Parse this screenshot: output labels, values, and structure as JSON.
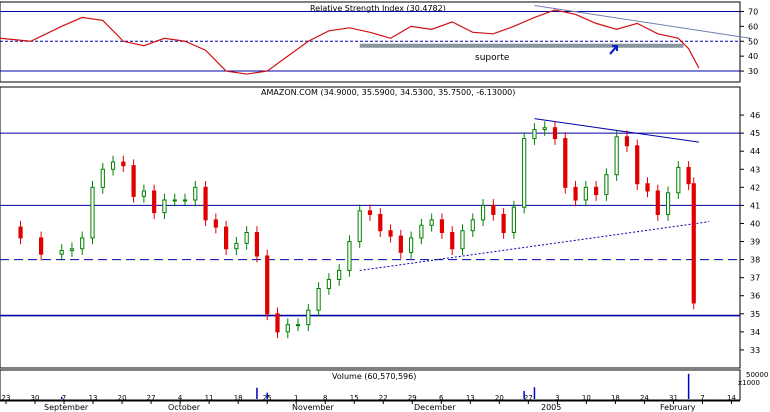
{
  "chart_data": {
    "type": "candlestick",
    "panels": {
      "rsi": {
        "title": "Relative Strength Index (30.4782)",
        "ylim": [
          24,
          75
        ],
        "ticks": [
          30,
          40,
          50,
          60,
          70
        ],
        "reference_lines": [
          70,
          50,
          30
        ],
        "annotation": "suporte",
        "support_level": 47,
        "trend_points": [
          [
            0,
            52
          ],
          [
            6,
            50
          ],
          [
            12,
            60
          ],
          [
            16,
            66
          ],
          [
            20,
            64
          ],
          [
            24,
            50
          ],
          [
            28,
            47
          ],
          [
            32,
            52
          ],
          [
            36,
            50
          ],
          [
            40,
            44
          ],
          [
            44,
            30
          ],
          [
            48,
            28
          ],
          [
            52,
            30
          ],
          [
            56,
            40
          ],
          [
            60,
            50
          ],
          [
            64,
            57
          ],
          [
            68,
            59
          ],
          [
            72,
            56
          ],
          [
            76,
            52
          ],
          [
            80,
            60
          ],
          [
            84,
            58
          ],
          [
            88,
            63
          ],
          [
            92,
            56
          ],
          [
            96,
            55
          ],
          [
            100,
            60
          ],
          [
            104,
            66
          ],
          [
            108,
            71
          ],
          [
            112,
            68
          ],
          [
            116,
            62
          ],
          [
            120,
            58
          ],
          [
            124,
            62
          ],
          [
            128,
            55
          ],
          [
            132,
            52
          ],
          [
            134,
            45
          ],
          [
            136,
            32
          ]
        ],
        "downtrend_line": [
          [
            104,
            74
          ],
          [
            146,
            52
          ]
        ]
      },
      "price": {
        "title": "AMAZON.COM (34.9000, 35.5900, 34.5300, 35.7500, -6.13000)",
        "ylim": [
          32,
          47
        ],
        "ticks": [
          33,
          34,
          35,
          36,
          37,
          38,
          39,
          40,
          41,
          42,
          43,
          44,
          45,
          46
        ],
        "horizontal_lines": [
          {
            "value": 45,
            "style": "solid"
          },
          {
            "value": 41,
            "style": "solid"
          },
          {
            "value": 38,
            "style": "dashed"
          },
          {
            "value": 34.9,
            "style": "solid"
          }
        ],
        "trendlines": [
          {
            "from": [
              104,
              45.8
            ],
            "to": [
              136,
              44.5
            ],
            "style": "solid"
          },
          {
            "from": [
              70,
              37.4
            ],
            "to": [
              138,
              40.1
            ],
            "style": "dotted"
          }
        ],
        "close_points": [
          [
            0,
            39.8
          ],
          [
            4,
            39.2
          ],
          [
            8,
            38.3
          ],
          [
            12,
            38.5
          ],
          [
            14,
            38.6
          ],
          [
            16,
            39.2
          ],
          [
            18,
            42.0
          ],
          [
            20,
            43.0
          ],
          [
            22,
            43.4
          ],
          [
            24,
            43.2
          ],
          [
            26,
            41.5
          ],
          [
            28,
            41.8
          ],
          [
            30,
            40.6
          ],
          [
            32,
            41.3
          ],
          [
            34,
            41.3
          ],
          [
            36,
            41.3
          ],
          [
            38,
            42.0
          ],
          [
            40,
            40.2
          ],
          [
            42,
            39.8
          ],
          [
            44,
            38.6
          ],
          [
            46,
            38.9
          ],
          [
            48,
            39.5
          ],
          [
            50,
            38.2
          ],
          [
            52,
            35.0
          ],
          [
            54,
            34.0
          ],
          [
            56,
            34.4
          ],
          [
            58,
            34.4
          ],
          [
            60,
            35.2
          ],
          [
            62,
            36.4
          ],
          [
            64,
            36.9
          ],
          [
            66,
            37.4
          ],
          [
            68,
            39.0
          ],
          [
            70,
            40.7
          ],
          [
            72,
            40.5
          ],
          [
            74,
            39.6
          ],
          [
            76,
            39.3
          ],
          [
            78,
            38.4
          ],
          [
            80,
            39.2
          ],
          [
            82,
            39.9
          ],
          [
            84,
            40.2
          ],
          [
            86,
            39.5
          ],
          [
            88,
            38.6
          ],
          [
            90,
            39.6
          ],
          [
            92,
            40.2
          ],
          [
            94,
            41.0
          ],
          [
            96,
            40.5
          ],
          [
            98,
            39.5
          ],
          [
            100,
            40.9
          ],
          [
            102,
            44.7
          ],
          [
            104,
            45.2
          ],
          [
            106,
            45.3
          ],
          [
            108,
            44.7
          ],
          [
            110,
            42.0
          ],
          [
            112,
            41.3
          ],
          [
            114,
            42.0
          ],
          [
            116,
            41.6
          ],
          [
            118,
            42.7
          ],
          [
            120,
            44.8
          ],
          [
            122,
            44.3
          ],
          [
            124,
            42.2
          ],
          [
            126,
            41.8
          ],
          [
            128,
            40.5
          ],
          [
            130,
            41.7
          ],
          [
            132,
            43.1
          ],
          [
            134,
            42.2
          ],
          [
            135,
            35.6
          ]
        ]
      },
      "volume": {
        "title": "Volume (60,570,596)",
        "ticks": [
          "50000",
          "x1000"
        ],
        "bars": [
          [
            12,
            5000
          ],
          [
            50,
            25000
          ],
          [
            52,
            14000
          ],
          [
            102,
            18000
          ],
          [
            104,
            26000
          ],
          [
            134,
            56000
          ]
        ]
      }
    },
    "x_day_labels": [
      "23",
      "30",
      "7",
      "13",
      "20",
      "27",
      "4",
      "11",
      "18",
      "25",
      "1",
      "8",
      "15",
      "22",
      "29",
      "6",
      "13",
      "20",
      "27",
      "3",
      "10",
      "18",
      "24",
      "31",
      "7",
      "14"
    ],
    "x_month_labels": [
      "September",
      "October",
      "November",
      "December",
      "2005",
      "February"
    ]
  }
}
